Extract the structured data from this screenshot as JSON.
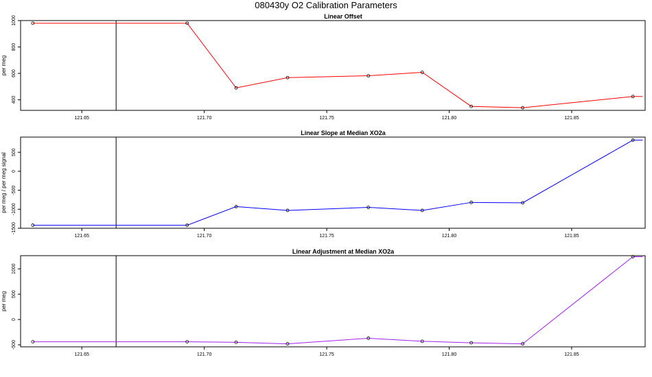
{
  "title": "080430y   O2 Calibration Parameters",
  "chart_data": [
    {
      "type": "line",
      "title": "Linear Offset",
      "ylabel": "per meg",
      "xlim": [
        121.625,
        121.88
      ],
      "ylim": [
        320,
        1000
      ],
      "xticks": [
        121.65,
        121.7,
        121.75,
        121.8,
        121.85
      ],
      "xtick_labels": [
        "121.65",
        "121.70",
        "121.75",
        "121.80",
        "121.85"
      ],
      "yticks": [
        400,
        600,
        800,
        1000
      ],
      "ytick_labels": [
        "400",
        "600",
        "800",
        "1000"
      ],
      "vline_x": 121.664,
      "color": "#ff0000",
      "x": [
        121.63,
        121.693,
        121.713,
        121.734,
        121.767,
        121.789,
        121.809,
        121.83,
        121.875
      ],
      "y": [
        980,
        980,
        490,
        568,
        582,
        608,
        350,
        340,
        425
      ],
      "line_end_x": 121.879
    },
    {
      "type": "line",
      "title": "Linear Slope at Median XO2a",
      "ylabel": "per meg / per meg signal",
      "xlim": [
        121.625,
        121.88
      ],
      "ylim": [
        -1500,
        900
      ],
      "xticks": [
        121.65,
        121.7,
        121.75,
        121.8,
        121.85
      ],
      "xtick_labels": [
        "121.65",
        "121.70",
        "121.75",
        "121.80",
        "121.85"
      ],
      "yticks": [
        -1500,
        -1000,
        -500,
        0,
        500
      ],
      "ytick_labels": [
        "-1500",
        "-1000",
        "-500",
        "0",
        "500"
      ],
      "vline_x": 121.664,
      "color": "#0000ff",
      "x": [
        121.63,
        121.693,
        121.713,
        121.734,
        121.767,
        121.789,
        121.809,
        121.83,
        121.875
      ],
      "y": [
        -1420,
        -1420,
        -930,
        -1030,
        -950,
        -1030,
        -820,
        -830,
        820
      ],
      "line_end_x": 121.879
    },
    {
      "type": "line",
      "title": "Linear Adjustment at Median XO2a",
      "ylabel": "per meg",
      "xlim": [
        121.625,
        121.88
      ],
      "ylim": [
        -540,
        1260
      ],
      "xticks": [
        121.65,
        121.7,
        121.75,
        121.8,
        121.85
      ],
      "xtick_labels": [
        "121.65",
        "121.70",
        "121.75",
        "121.80",
        "121.85"
      ],
      "yticks": [
        -500,
        0,
        500,
        1000
      ],
      "ytick_labels": [
        "-500",
        "0",
        "500",
        "1000"
      ],
      "vline_x": 121.664,
      "color": "#a020f0",
      "x": [
        121.63,
        121.693,
        121.713,
        121.734,
        121.767,
        121.789,
        121.809,
        121.83,
        121.875
      ],
      "y": [
        -440,
        -440,
        -450,
        -480,
        -370,
        -430,
        -460,
        -480,
        1240
      ],
      "line_end_x": 121.879
    }
  ]
}
